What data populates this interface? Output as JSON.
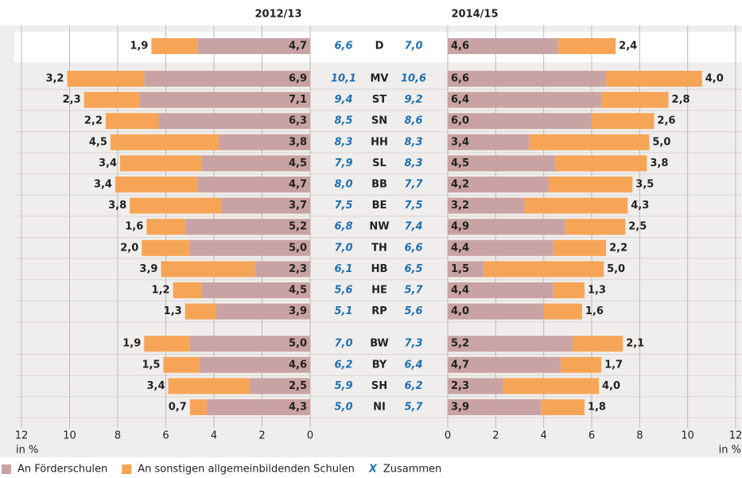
{
  "chart_data": {
    "type": "butterfly-bar",
    "categories": [
      "D",
      "MV",
      "ST",
      "SN",
      "HH",
      "SL",
      "BB",
      "BE",
      "NW",
      "TH",
      "HB",
      "HE",
      "RP",
      "BW",
      "BY",
      "SH",
      "NI"
    ],
    "legend": [
      {
        "name": "An Förderschulen",
        "color": "#c9a3a3"
      },
      {
        "name": "An sonstigen allgemeinbildenden Schulen",
        "color": "#f6a557"
      }
    ],
    "total_legend": {
      "symbol": "X",
      "label": "Zusammen",
      "color": "#1f70b4"
    },
    "panels": [
      {
        "title": "2012/13",
        "xlabel": "in %",
        "xlim": [
          0,
          12
        ],
        "xticks": [
          0,
          2,
          4,
          6,
          8,
          10,
          12
        ],
        "direction": "left",
        "series": [
          {
            "name": "An Förderschulen",
            "color": "#c9a3a3",
            "values": [
              4.7,
              6.9,
              7.1,
              6.3,
              3.8,
              4.5,
              4.7,
              3.7,
              5.2,
              5.0,
              2.3,
              4.5,
              3.9,
              5.0,
              4.6,
              2.5,
              4.3
            ],
            "value_labels": [
              "4,7",
              "6,9",
              "7,1",
              "6,3",
              "3,8",
              "4,5",
              "4,7",
              "3,7",
              "5,2",
              "5,0",
              "2,3",
              "4,5",
              "3,9",
              "5,0",
              "4,6",
              "2,5",
              "4,3"
            ]
          },
          {
            "name": "An sonstigen allgemeinbildenden Schulen",
            "color": "#f6a557",
            "values": [
              1.9,
              3.2,
              2.3,
              2.2,
              4.5,
              3.4,
              3.4,
              3.8,
              1.6,
              2.0,
              3.9,
              1.2,
              1.3,
              1.9,
              1.5,
              3.4,
              0.7
            ],
            "value_labels": [
              "1,9",
              "3,2",
              "2,3",
              "2,2",
              "4,5",
              "3,4",
              "3,4",
              "3,8",
              "1,6",
              "2,0",
              "3,9",
              "1,2",
              "1,3",
              "1,9",
              "1,5",
              "3,4",
              "0,7"
            ]
          }
        ],
        "totals": {
          "values": [
            6.6,
            10.1,
            9.4,
            8.5,
            8.3,
            7.9,
            8.0,
            7.5,
            6.8,
            7.0,
            6.1,
            5.6,
            5.1,
            7.0,
            6.2,
            5.9,
            5.0
          ],
          "value_labels": [
            "6,6",
            "10,1",
            "9,4",
            "8,5",
            "8,3",
            "7,9",
            "8,0",
            "7,5",
            "6,8",
            "7,0",
            "6,1",
            "5,6",
            "5,1",
            "7,0",
            "6,2",
            "5,9",
            "5,0"
          ]
        }
      },
      {
        "title": "2014/15",
        "xlabel": "in %",
        "xlim": [
          0,
          12
        ],
        "xticks": [
          0,
          2,
          4,
          6,
          8,
          10,
          12
        ],
        "direction": "right",
        "series": [
          {
            "name": "An Förderschulen",
            "color": "#c9a3a3",
            "values": [
              4.6,
              6.6,
              6.4,
              6.0,
              3.4,
              4.5,
              4.2,
              3.2,
              4.9,
              4.4,
              1.5,
              4.4,
              4.0,
              5.2,
              4.7,
              2.3,
              3.9
            ],
            "value_labels": [
              "4,6",
              "6,6",
              "6,4",
              "6,0",
              "3,4",
              "4,5",
              "4,2",
              "3,2",
              "4,9",
              "4,4",
              "1,5",
              "4,4",
              "4,0",
              "5,2",
              "4,7",
              "2,3",
              "3,9"
            ]
          },
          {
            "name": "An sonstigen allgemeinbildenden Schulen",
            "color": "#f6a557",
            "values": [
              2.4,
              4.0,
              2.8,
              2.6,
              5.0,
              3.8,
              3.5,
              4.3,
              2.5,
              2.2,
              5.0,
              1.3,
              1.6,
              2.1,
              1.7,
              4.0,
              1.8
            ],
            "value_labels": [
              "2,4",
              "4,0",
              "2,8",
              "2,6",
              "5,0",
              "3,8",
              "3,5",
              "4,3",
              "2,5",
              "2,2",
              "5,0",
              "1,3",
              "1,6",
              "2,1",
              "1,7",
              "4,0",
              "1,8"
            ]
          }
        ],
        "totals": {
          "values": [
            7.0,
            10.6,
            9.2,
            8.6,
            8.3,
            8.3,
            7.7,
            7.5,
            7.4,
            6.6,
            6.5,
            5.7,
            5.6,
            7.3,
            6.4,
            6.2,
            5.7
          ],
          "value_labels": [
            "7,0",
            "10,6",
            "9,2",
            "8,6",
            "8,3",
            "8,3",
            "7,7",
            "7,5",
            "7,4",
            "6,6",
            "6,5",
            "5,7",
            "5,6",
            "7,3",
            "6,4",
            "6,2",
            "5,7"
          ]
        }
      }
    ]
  }
}
